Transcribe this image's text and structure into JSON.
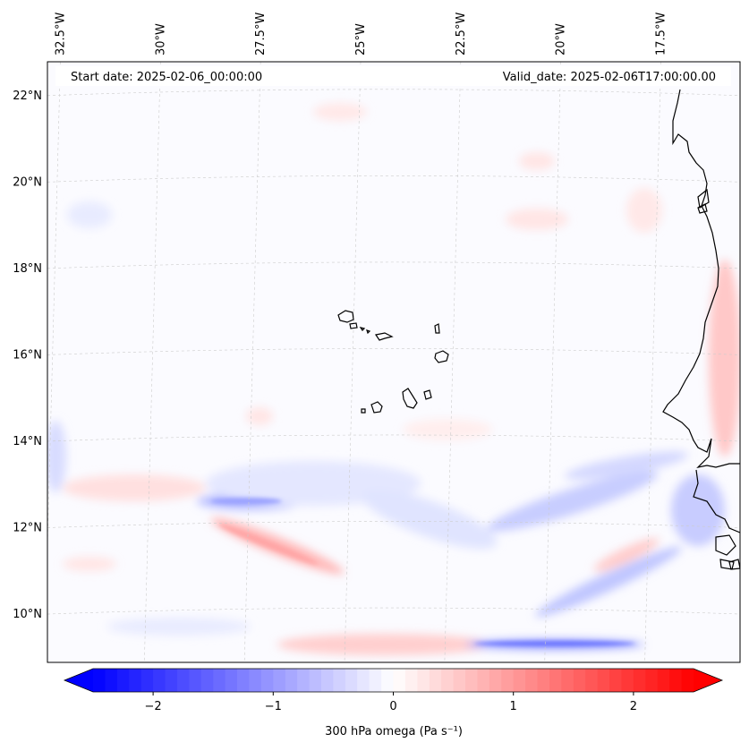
{
  "header": {
    "start_date": "Start date: 2025-02-06_00:00:00",
    "valid_date": "Valid_date: 2025-02-06T17:00:00.00"
  },
  "map": {
    "longitude_labels": [
      "32.5°W",
      "30°W",
      "27.5°W",
      "25°W",
      "22.5°W",
      "20°W",
      "17.5°W"
    ],
    "latitude_labels": [
      "22°N",
      "20°N",
      "18°N",
      "16°N",
      "14°N",
      "12°N",
      "10°N"
    ],
    "grid_lons": [
      -32.5,
      -30,
      -27.5,
      -25,
      -22.5,
      -20,
      -17.5
    ],
    "grid_lats": [
      22,
      20,
      18,
      16,
      14,
      12,
      10
    ],
    "extent": {
      "lon_min": -32.6,
      "lon_max": -15.3,
      "lat_min": 8.8,
      "lat_max": 22.7
    }
  },
  "colorbar": {
    "label": "300 hPa omega (Pa s⁻¹)",
    "ticks": [
      "−2",
      "−1",
      "0",
      "1",
      "2"
    ],
    "tick_values": [
      -2,
      -1,
      0,
      1,
      2
    ],
    "vmin": -2.5,
    "vmax": 2.5,
    "negative_color": "#0000ff",
    "positive_color": "#ff0000",
    "zero_color": "#ffffff"
  },
  "colors": {
    "coastline": "#000000",
    "grid": "#cccccc"
  }
}
